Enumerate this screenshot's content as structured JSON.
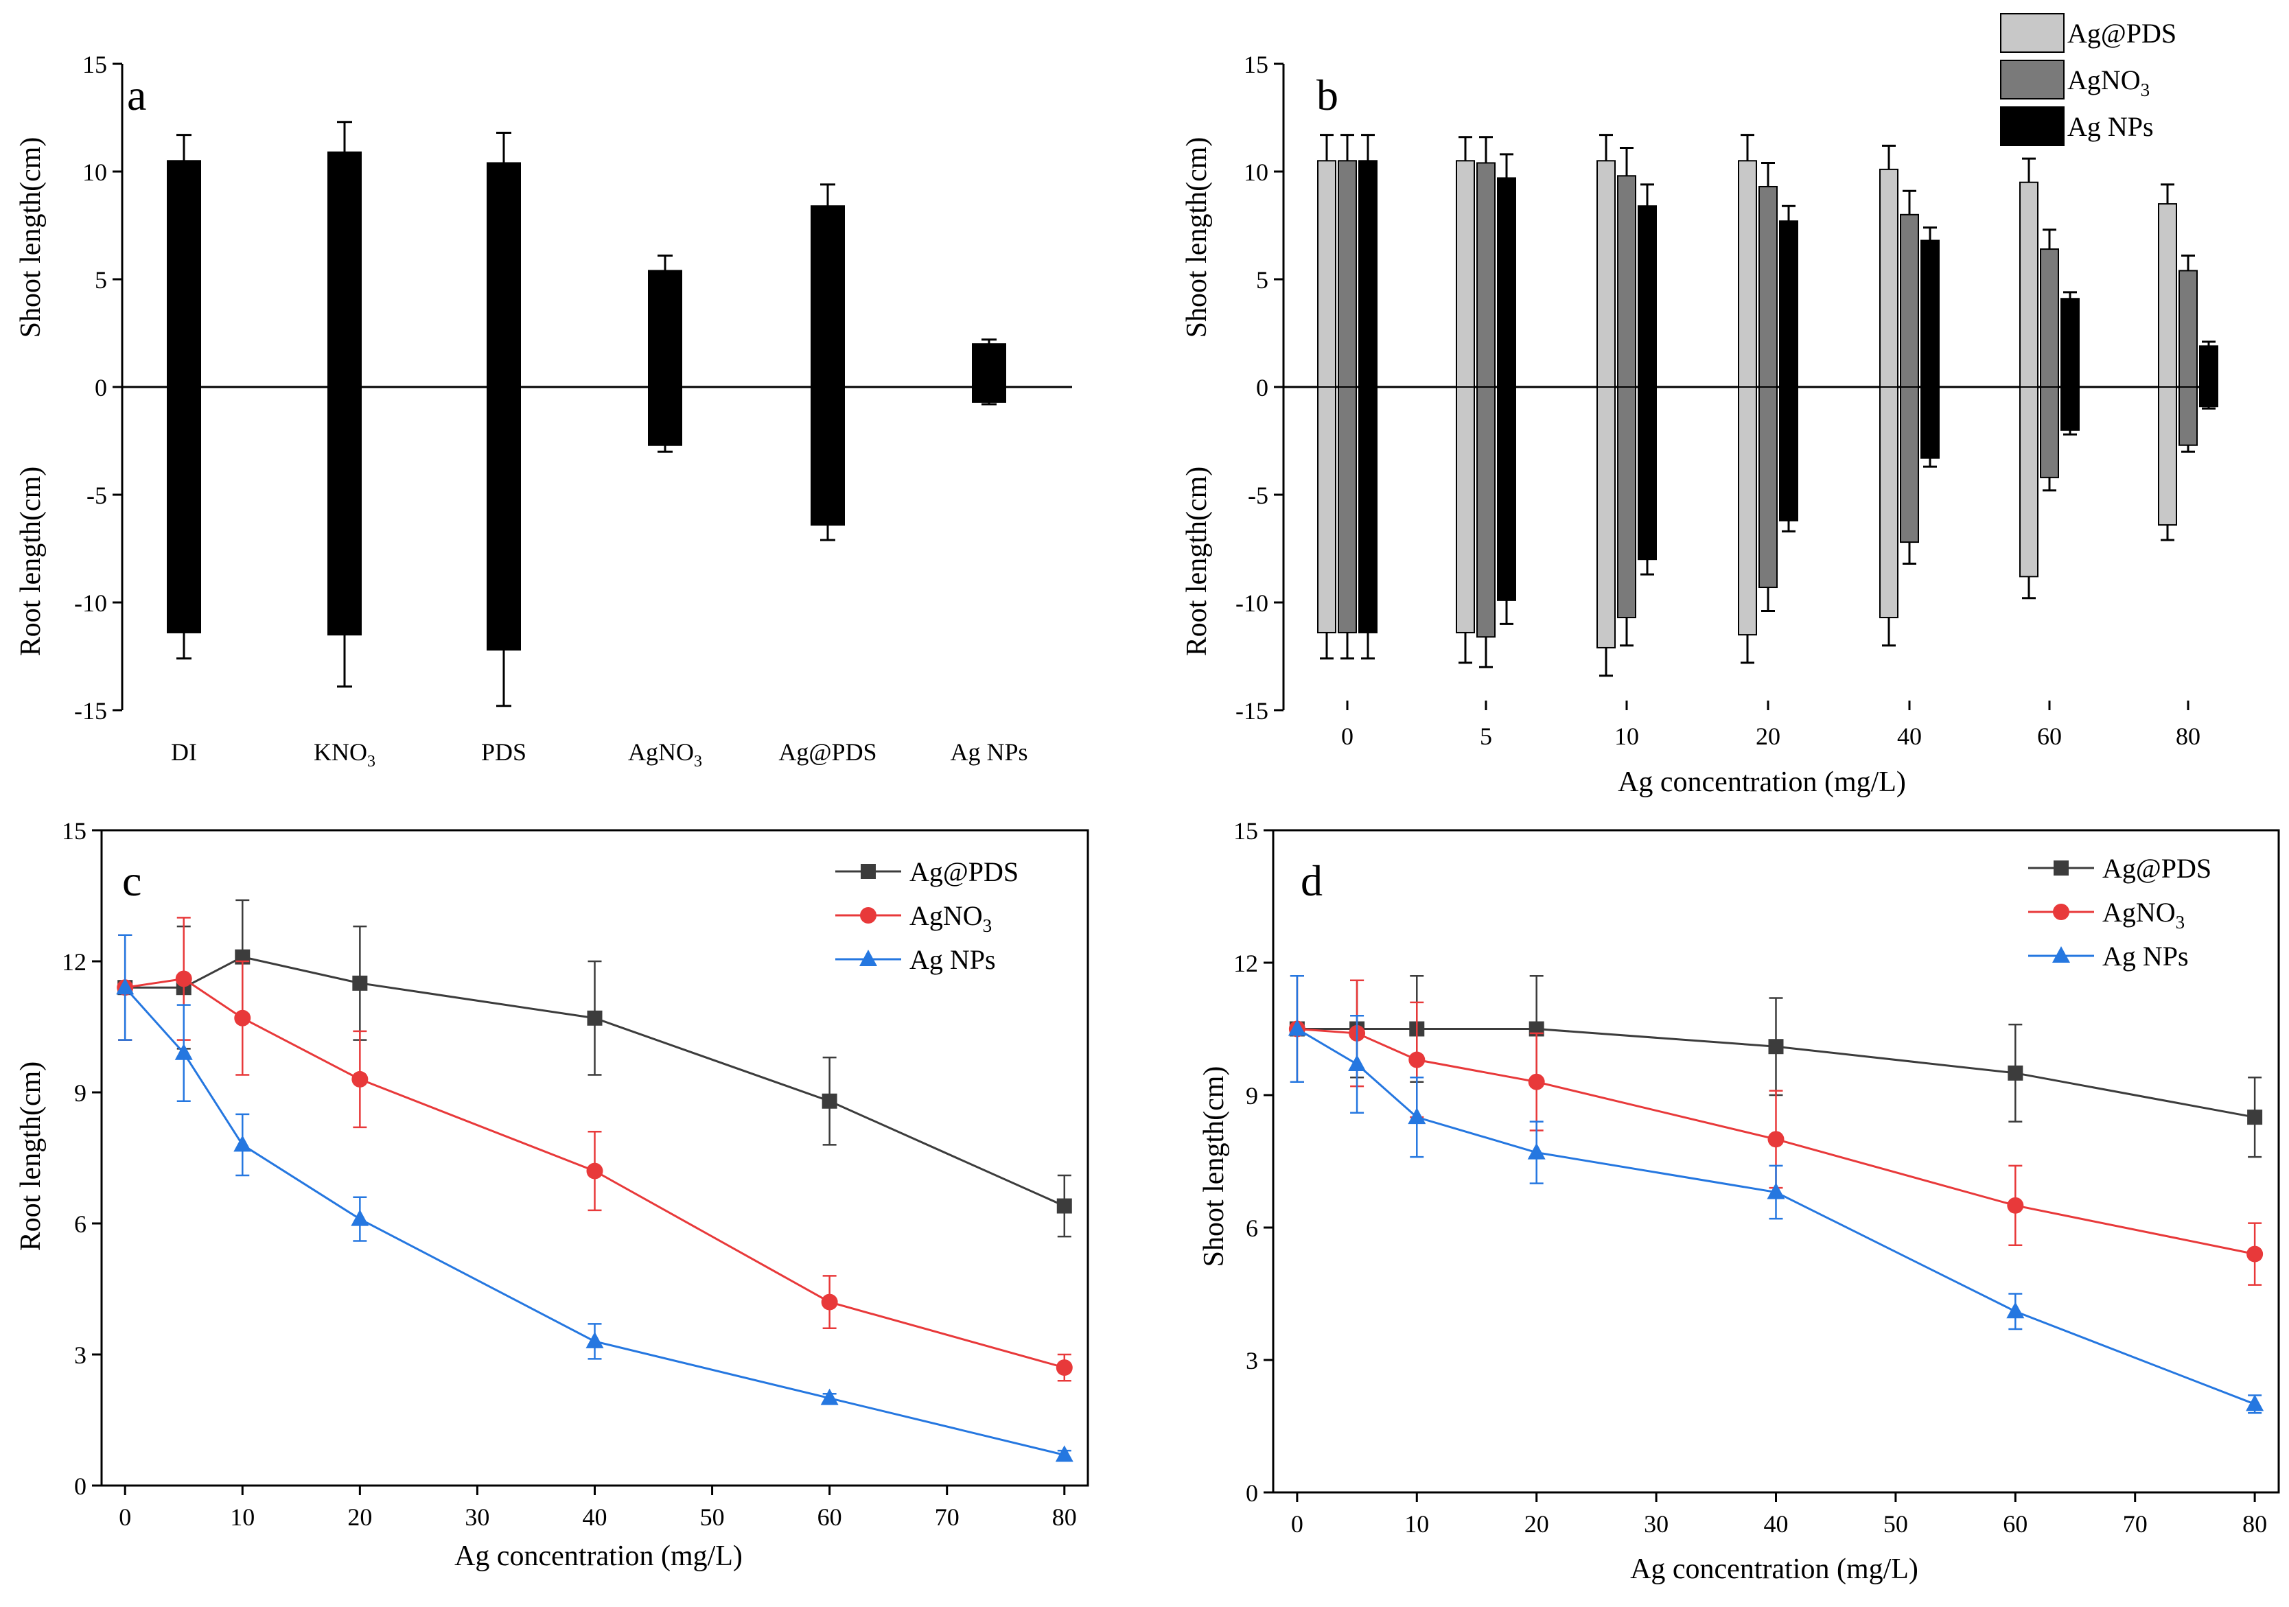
{
  "chart_data": [
    {
      "panel": "a",
      "type": "bar",
      "label": "a",
      "categories": [
        "DI",
        "KNO3",
        "PDS",
        "AgNO3",
        "Ag@PDS",
        "Ag NPs"
      ],
      "category_labels": [
        {
          "main": "DI",
          "sub": ""
        },
        {
          "main": "KNO",
          "sub": "3"
        },
        {
          "main": "PDS",
          "sub": ""
        },
        {
          "main": "AgNO",
          "sub": "3"
        },
        {
          "main": "Ag@PDS",
          "sub": ""
        },
        {
          "main": "Ag NPs",
          "sub": ""
        }
      ],
      "shoot": [
        10.5,
        10.9,
        10.4,
        5.4,
        8.4,
        2.0
      ],
      "shoot_err": [
        1.2,
        1.4,
        1.4,
        0.7,
        1.0,
        0.2
      ],
      "root": [
        -11.4,
        -11.5,
        -12.2,
        -2.7,
        -6.4,
        -0.7
      ],
      "root_err": [
        1.2,
        2.4,
        2.6,
        0.3,
        0.7,
        0.1
      ],
      "ylabel_top": "Shoot length(cm)",
      "ylabel_bottom": "Root length(cm)",
      "ylim": [
        -15,
        15
      ],
      "yticks": [
        -15,
        -10,
        -5,
        0,
        5,
        10,
        15
      ],
      "color": "#000000"
    },
    {
      "panel": "b",
      "type": "bar",
      "label": "b",
      "categories": [
        "0",
        "5",
        "10",
        "20",
        "40",
        "60",
        "80"
      ],
      "xlabel": "Ag concentration (mg/L)",
      "ylabel_top": "Shoot length(cm)",
      "ylabel_bottom": "Root length(cm)",
      "ylim": [
        -15,
        15
      ],
      "yticks": [
        -15,
        -10,
        -5,
        0,
        5,
        10,
        15
      ],
      "series": [
        {
          "name": "Ag@PDS",
          "legend_main": "Ag@PDS",
          "legend_sub": "",
          "color": "#c8c8c8",
          "shoot": [
            10.5,
            10.5,
            10.5,
            10.5,
            10.1,
            9.5,
            8.5
          ],
          "shoot_err": [
            1.2,
            1.1,
            1.2,
            1.2,
            1.1,
            1.1,
            0.9
          ],
          "root": [
            -11.4,
            -11.4,
            -12.1,
            -11.5,
            -10.7,
            -8.8,
            -6.4
          ],
          "root_err": [
            1.2,
            1.4,
            1.3,
            1.3,
            1.3,
            1.0,
            0.7
          ]
        },
        {
          "name": "AgNO3",
          "legend_main": "AgNO",
          "legend_sub": "3",
          "color": "#7a7a7a",
          "shoot": [
            10.5,
            10.4,
            9.8,
            9.3,
            8.0,
            6.4,
            5.4
          ],
          "shoot_err": [
            1.2,
            1.2,
            1.3,
            1.1,
            1.1,
            0.9,
            0.7
          ],
          "root": [
            -11.4,
            -11.6,
            -10.7,
            -9.3,
            -7.2,
            -4.2,
            -2.7
          ],
          "root_err": [
            1.2,
            1.4,
            1.3,
            1.1,
            1.0,
            0.6,
            0.3
          ]
        },
        {
          "name": "Ag NPs",
          "legend_main": "Ag NPs",
          "legend_sub": "",
          "color": "#000000",
          "shoot": [
            10.5,
            9.7,
            8.4,
            7.7,
            6.8,
            4.1,
            1.9
          ],
          "shoot_err": [
            1.2,
            1.1,
            1.0,
            0.7,
            0.6,
            0.3,
            0.2
          ],
          "root": [
            -11.4,
            -9.9,
            -8.0,
            -6.2,
            -3.3,
            -2.0,
            -0.9
          ],
          "root_err": [
            1.2,
            1.1,
            0.7,
            0.5,
            0.4,
            0.2,
            0.1
          ]
        }
      ]
    },
    {
      "panel": "c",
      "type": "line",
      "label": "c",
      "x": [
        0,
        5,
        10,
        20,
        40,
        60,
        80
      ],
      "xlabel": "Ag concentration (mg/L)",
      "ylabel": "Root length(cm)",
      "xlim": [
        -2,
        82
      ],
      "xticks": [
        0,
        10,
        20,
        30,
        40,
        50,
        60,
        70,
        80
      ],
      "ylim": [
        0,
        15
      ],
      "yticks": [
        0,
        3,
        6,
        9,
        12,
        15
      ],
      "series": [
        {
          "name": "Ag@PDS",
          "legend_main": "Ag@PDS",
          "legend_sub": "",
          "color": "#3c3c3c",
          "marker": "square",
          "values": [
            11.4,
            11.4,
            12.1,
            11.5,
            10.7,
            8.8,
            6.4
          ],
          "err": [
            1.2,
            1.4,
            1.3,
            1.3,
            1.3,
            1.0,
            0.7
          ]
        },
        {
          "name": "AgNO3",
          "legend_main": "AgNO",
          "legend_sub": "3",
          "color": "#e8393a",
          "marker": "circle",
          "values": [
            11.4,
            11.6,
            10.7,
            9.3,
            7.2,
            4.2,
            2.7
          ],
          "err": [
            1.2,
            1.4,
            1.3,
            1.1,
            0.9,
            0.6,
            0.3
          ]
        },
        {
          "name": "Ag NPs",
          "legend_main": "Ag NPs",
          "legend_sub": "",
          "color": "#2577e0",
          "marker": "triangle",
          "values": [
            11.4,
            9.9,
            7.8,
            6.1,
            3.3,
            2.0,
            0.7
          ],
          "err": [
            1.2,
            1.1,
            0.7,
            0.5,
            0.4,
            0.1,
            0.1
          ]
        }
      ]
    },
    {
      "panel": "d",
      "type": "line",
      "label": "d",
      "x": [
        0,
        5,
        10,
        20,
        40,
        60,
        80
      ],
      "xlabel": "Ag concentration (mg/L)",
      "ylabel": "Shoot length(cm)",
      "xlim": [
        -2,
        82
      ],
      "xticks": [
        0,
        10,
        20,
        30,
        40,
        50,
        60,
        70,
        80
      ],
      "ylim": [
        0,
        15
      ],
      "yticks": [
        0,
        3,
        6,
        9,
        12,
        15
      ],
      "series": [
        {
          "name": "Ag@PDS",
          "legend_main": "Ag@PDS",
          "legend_sub": "",
          "color": "#3c3c3c",
          "marker": "square",
          "values": [
            10.5,
            10.5,
            10.5,
            10.5,
            10.1,
            9.5,
            8.5
          ],
          "err": [
            1.2,
            1.1,
            1.2,
            1.2,
            1.1,
            1.1,
            0.9
          ]
        },
        {
          "name": "AgNO3",
          "legend_main": "AgNO",
          "legend_sub": "3",
          "color": "#e8393a",
          "marker": "circle",
          "values": [
            10.5,
            10.4,
            9.8,
            9.3,
            8.0,
            6.5,
            5.4
          ],
          "err": [
            1.2,
            1.2,
            1.3,
            1.1,
            1.1,
            0.9,
            0.7
          ]
        },
        {
          "name": "Ag NPs",
          "legend_main": "Ag NPs",
          "legend_sub": "",
          "color": "#2577e0",
          "marker": "triangle",
          "values": [
            10.5,
            9.7,
            8.5,
            7.7,
            6.8,
            4.1,
            2.0
          ],
          "err": [
            1.2,
            1.1,
            0.9,
            0.7,
            0.6,
            0.4,
            0.2
          ]
        }
      ]
    }
  ]
}
